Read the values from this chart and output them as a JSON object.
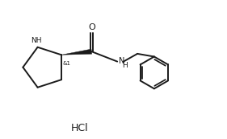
{
  "background_color": "#ffffff",
  "line_color": "#1a1a1a",
  "line_width": 1.4,
  "fig_width": 2.81,
  "fig_height": 1.73,
  "dpi": 100,
  "xlim": [
    0,
    10
  ],
  "ylim": [
    0,
    6.2
  ],
  "hcl_x": 3.5,
  "hcl_y": 0.45,
  "hcl_fontsize": 9
}
